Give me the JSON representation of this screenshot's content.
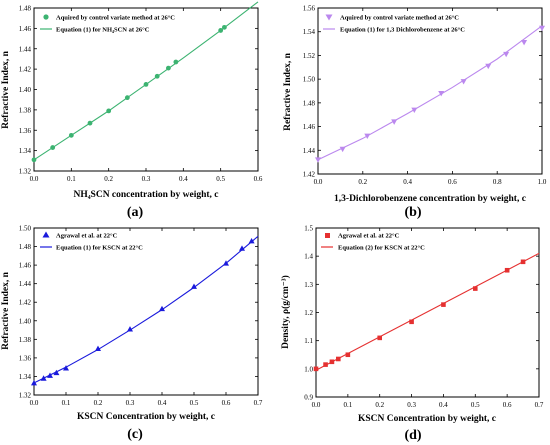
{
  "chart_data": [
    {
      "type": "scatter",
      "panel_label": "(a)",
      "xlabel": "NH₄SCN concentration by weight, c",
      "ylabel": "Refractive Index, n",
      "xlim": [
        0,
        0.6
      ],
      "ylim": [
        1.32,
        1.48
      ],
      "xticks": [
        0.0,
        0.1,
        0.2,
        0.3,
        0.4,
        0.5,
        0.6
      ],
      "yticks": [
        1.32,
        1.34,
        1.36,
        1.38,
        1.4,
        1.42,
        1.44,
        1.46,
        1.48
      ],
      "color": "#3cb371",
      "marker": "circle",
      "legend": [
        "Aquired by control variate method at 26°C",
        "Equation (1) for NH₄SCN at 26°C"
      ],
      "points": {
        "x": [
          0.0,
          0.05,
          0.1,
          0.15,
          0.2,
          0.25,
          0.3,
          0.33,
          0.36,
          0.38,
          0.5,
          0.51
        ],
        "y": [
          1.331,
          1.343,
          1.355,
          1.367,
          1.379,
          1.392,
          1.405,
          1.413,
          1.421,
          1.427,
          1.458,
          1.461
        ]
      },
      "curve": {
        "x": [
          0.0,
          0.1,
          0.2,
          0.3,
          0.4,
          0.5,
          0.6
        ],
        "y": [
          1.331,
          1.355,
          1.379,
          1.405,
          1.431,
          1.458,
          1.486
        ]
      }
    },
    {
      "type": "scatter",
      "panel_label": "(b)",
      "xlabel": "1,3-Dichlorobenzene concentration by weight, c",
      "ylabel": "Refractive Index, n",
      "xlim": [
        0,
        1
      ],
      "ylim": [
        1.42,
        1.56
      ],
      "xticks": [
        0.0,
        0.2,
        0.4,
        0.6,
        0.8,
        1.0
      ],
      "yticks": [
        1.42,
        1.44,
        1.46,
        1.48,
        1.5,
        1.52,
        1.54,
        1.56
      ],
      "color": "#bb88ee",
      "marker": "triangle-down",
      "legend": [
        "Aquired by control variate method at 26°C",
        "Equation (1) for 1,3 Dichlorobenzene at 26°C"
      ],
      "points": {
        "x": [
          0.0,
          0.11,
          0.22,
          0.34,
          0.43,
          0.55,
          0.65,
          0.76,
          0.84,
          0.92,
          1.0
        ],
        "y": [
          1.432,
          1.441,
          1.452,
          1.464,
          1.474,
          1.488,
          1.498,
          1.511,
          1.521,
          1.531,
          1.543
        ]
      },
      "curve": {
        "x": [
          0.0,
          0.2,
          0.4,
          0.6,
          0.8,
          1.0
        ],
        "y": [
          1.432,
          1.45,
          1.471,
          1.493,
          1.517,
          1.545
        ]
      }
    },
    {
      "type": "scatter",
      "panel_label": "(c)",
      "xlabel": "KSCN Concentration by weight, c",
      "ylabel": "Refractive Index, n",
      "xlim": [
        0,
        0.7
      ],
      "ylim": [
        1.32,
        1.5
      ],
      "xticks": [
        0.0,
        0.1,
        0.2,
        0.3,
        0.4,
        0.5,
        0.6,
        0.7
      ],
      "yticks": [
        1.32,
        1.34,
        1.36,
        1.38,
        1.4,
        1.42,
        1.44,
        1.46,
        1.48,
        1.5
      ],
      "color": "#1a1adc",
      "marker": "triangle-up",
      "legend": [
        "Agrawal et al. at 22°C",
        "Equation (1) for KSCN at 22°C"
      ],
      "points": {
        "x": [
          0.0,
          0.03,
          0.05,
          0.07,
          0.1,
          0.2,
          0.3,
          0.4,
          0.5,
          0.6,
          0.65,
          0.68
        ],
        "y": [
          1.333,
          1.338,
          1.341,
          1.344,
          1.349,
          1.37,
          1.391,
          1.413,
          1.437,
          1.462,
          1.478,
          1.486
        ]
      },
      "curve": {
        "x": [
          0.0,
          0.1,
          0.2,
          0.3,
          0.4,
          0.5,
          0.6,
          0.7
        ],
        "y": [
          1.333,
          1.35,
          1.369,
          1.39,
          1.412,
          1.436,
          1.462,
          1.491
        ]
      }
    },
    {
      "type": "scatter",
      "panel_label": "(d)",
      "xlabel": "KSCN Concentration by weight, c",
      "ylabel": "Density, ρ(g/cm⁻³)",
      "xlim": [
        0,
        0.7
      ],
      "ylim": [
        0.9,
        1.5
      ],
      "xticks": [
        0.0,
        0.1,
        0.2,
        0.3,
        0.4,
        0.5,
        0.6,
        0.7
      ],
      "yticks": [
        0.9,
        1.0,
        1.1,
        1.2,
        1.3,
        1.4,
        1.5
      ],
      "color": "#e53030",
      "marker": "square",
      "legend": [
        "Agrawal et al. at 22°C",
        "Equation (2) for KSCN at 22°C"
      ],
      "points": {
        "x": [
          0.0,
          0.03,
          0.05,
          0.07,
          0.1,
          0.2,
          0.3,
          0.4,
          0.5,
          0.6,
          0.65
        ],
        "y": [
          1.0,
          1.015,
          1.025,
          1.035,
          1.05,
          1.11,
          1.167,
          1.228,
          1.285,
          1.35,
          1.38
        ]
      },
      "curve": {
        "x": [
          0.0,
          0.7
        ],
        "y": [
          0.995,
          1.41
        ]
      }
    }
  ]
}
